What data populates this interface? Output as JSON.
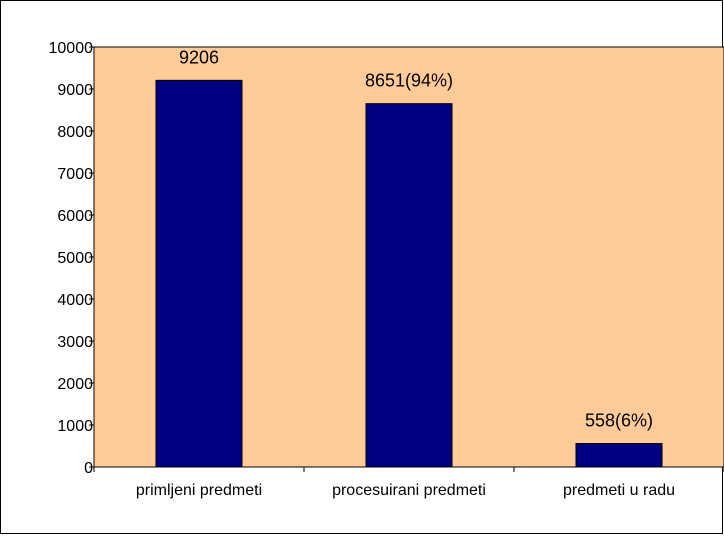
{
  "chart_data": {
    "type": "bar",
    "title": "",
    "xlabel": "",
    "ylabel": "",
    "categories": [
      "primljeni predmeti",
      "procesuirani predmeti",
      "predmeti u radu"
    ],
    "values": [
      9206,
      8651,
      558
    ],
    "data_labels": [
      "9206",
      "8651(94%)",
      "558(6%)"
    ],
    "ylim": [
      0,
      10000
    ],
    "yticks": [
      0,
      1000,
      2000,
      3000,
      4000,
      5000,
      6000,
      7000,
      8000,
      9000,
      10000
    ],
    "ytick_labels": [
      "0",
      "1000",
      "2000",
      "3000",
      "4000",
      "5000",
      "6000",
      "7000",
      "8000",
      "9000",
      "10000"
    ],
    "grid": false,
    "legend": "none",
    "colors": {
      "plot_background": "#FFCC99",
      "bar_fill": "#000080",
      "bar_stroke": "#000000",
      "axis": "#000000",
      "outer_border": "#000000"
    }
  }
}
